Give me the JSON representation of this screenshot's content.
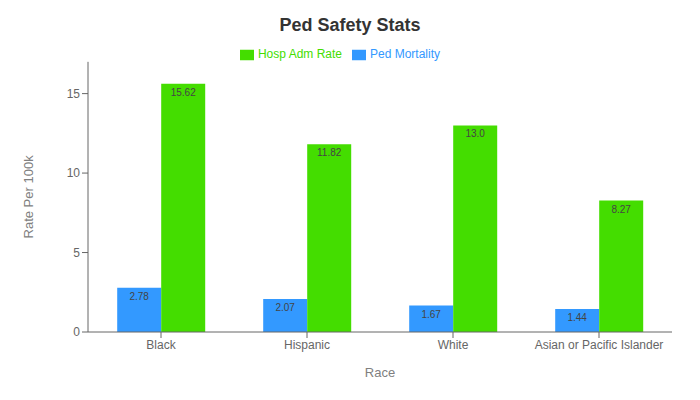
{
  "chart_data": {
    "type": "bar",
    "title": "Ped Safety Stats",
    "xlabel": "Race",
    "ylabel": "Rate Per 100k",
    "categories": [
      "Black",
      "Hispanic",
      "White",
      "Asian or Pacific Islander"
    ],
    "series": [
      {
        "name": "Ped Mortality",
        "color": "#3399FF",
        "values": [
          2.78,
          2.07,
          1.67,
          1.44
        ]
      },
      {
        "name": "Hosp Adm Rate",
        "color": "#44DD00",
        "values": [
          15.62,
          11.82,
          13.0,
          8.27
        ],
        "value_labels": [
          "15.62",
          "11.82",
          "13.0",
          "8.27"
        ]
      }
    ],
    "ylim": [
      0,
      17
    ],
    "yticks": [
      0,
      5,
      10,
      15
    ],
    "grid": false,
    "legend": "top",
    "data_labels": true
  }
}
